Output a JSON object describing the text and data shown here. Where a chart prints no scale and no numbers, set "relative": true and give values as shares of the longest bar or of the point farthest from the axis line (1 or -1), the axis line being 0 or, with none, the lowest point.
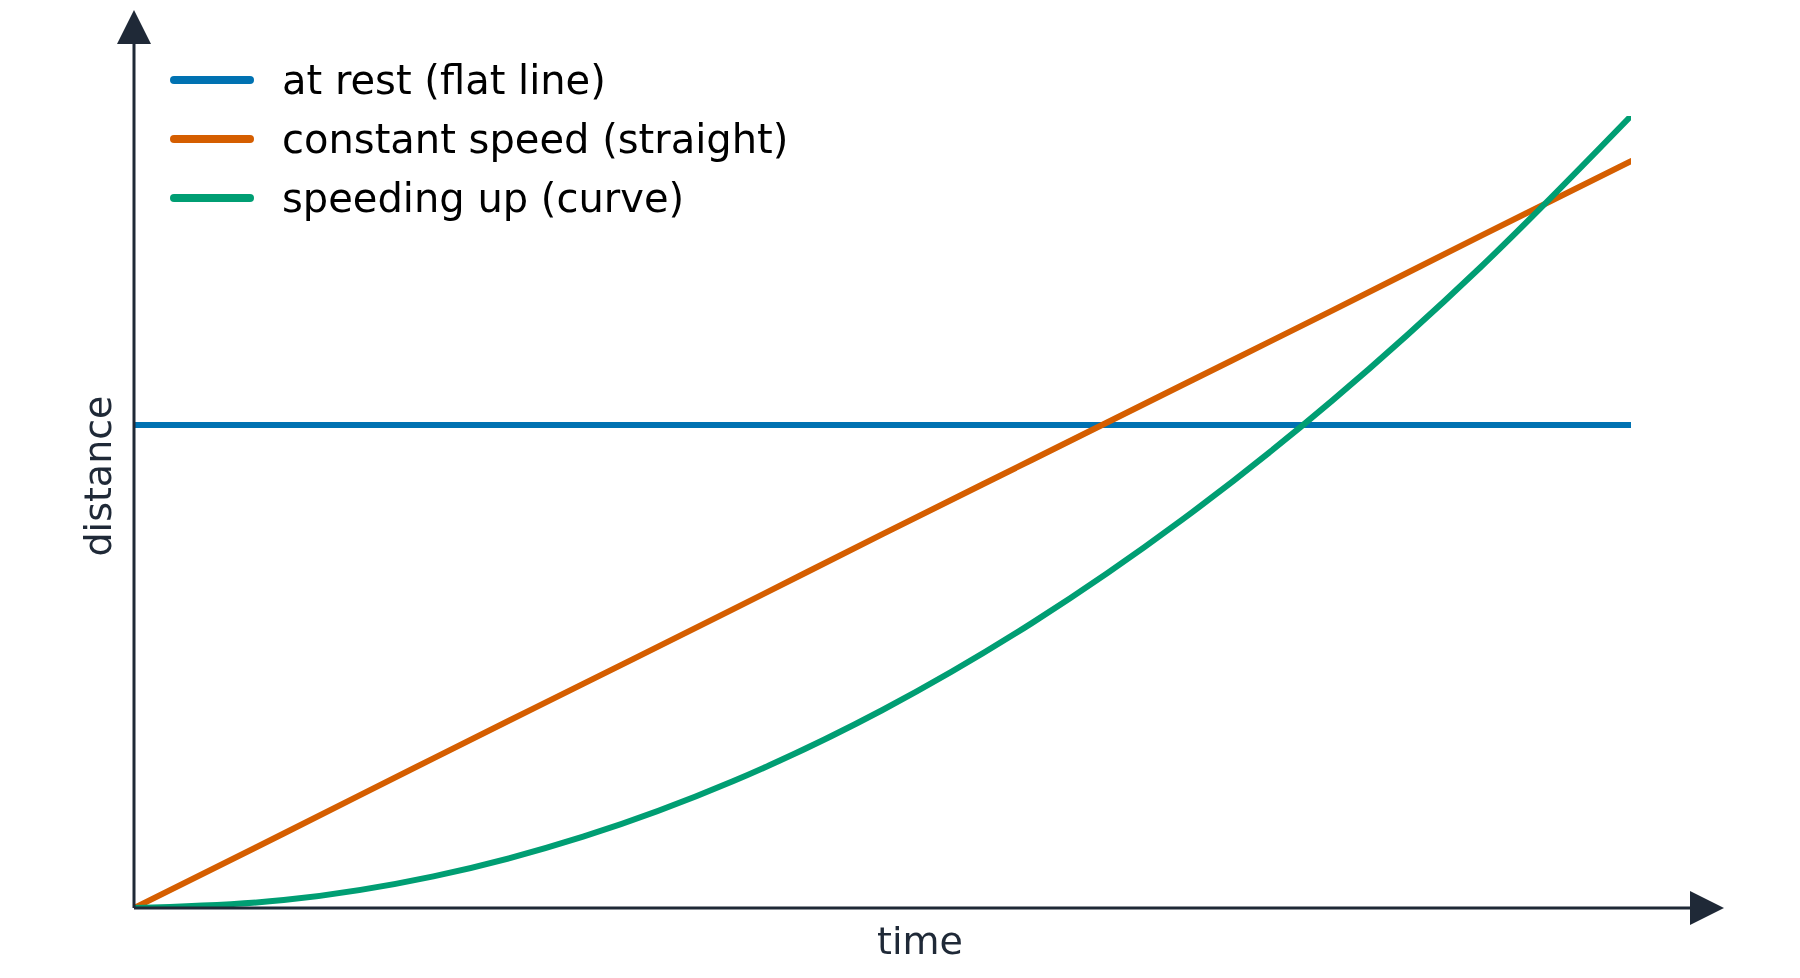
{
  "chart_data": {
    "type": "line",
    "xlabel": "time",
    "ylabel": "distance",
    "relative": true,
    "categories": [
      null,
      null,
      null,
      null,
      null,
      null,
      null,
      null,
      null,
      null,
      null
    ],
    "series": [
      {
        "name": "at rest (flat line)",
        "color": "#0072b2",
        "values": [
          0.61,
          0.61,
          0.61,
          0.61,
          0.61,
          0.61,
          0.61,
          0.61,
          0.61,
          0.61,
          0.61
        ]
      },
      {
        "name": "constant speed (straight)",
        "color": "#d55e00",
        "values": [
          0,
          0.094,
          0.189,
          0.283,
          0.377,
          0.472,
          0.566,
          0.66,
          0.754,
          0.849,
          0.943
        ]
      },
      {
        "name": "speeding up (curve)",
        "color": "#009e73",
        "values": [
          0,
          0.01,
          0.04,
          0.09,
          0.16,
          0.25,
          0.36,
          0.49,
          0.64,
          0.81,
          1
        ]
      }
    ],
    "legend": "top left",
    "grid": false,
    "marker": "none",
    "line_style": "solid"
  }
}
